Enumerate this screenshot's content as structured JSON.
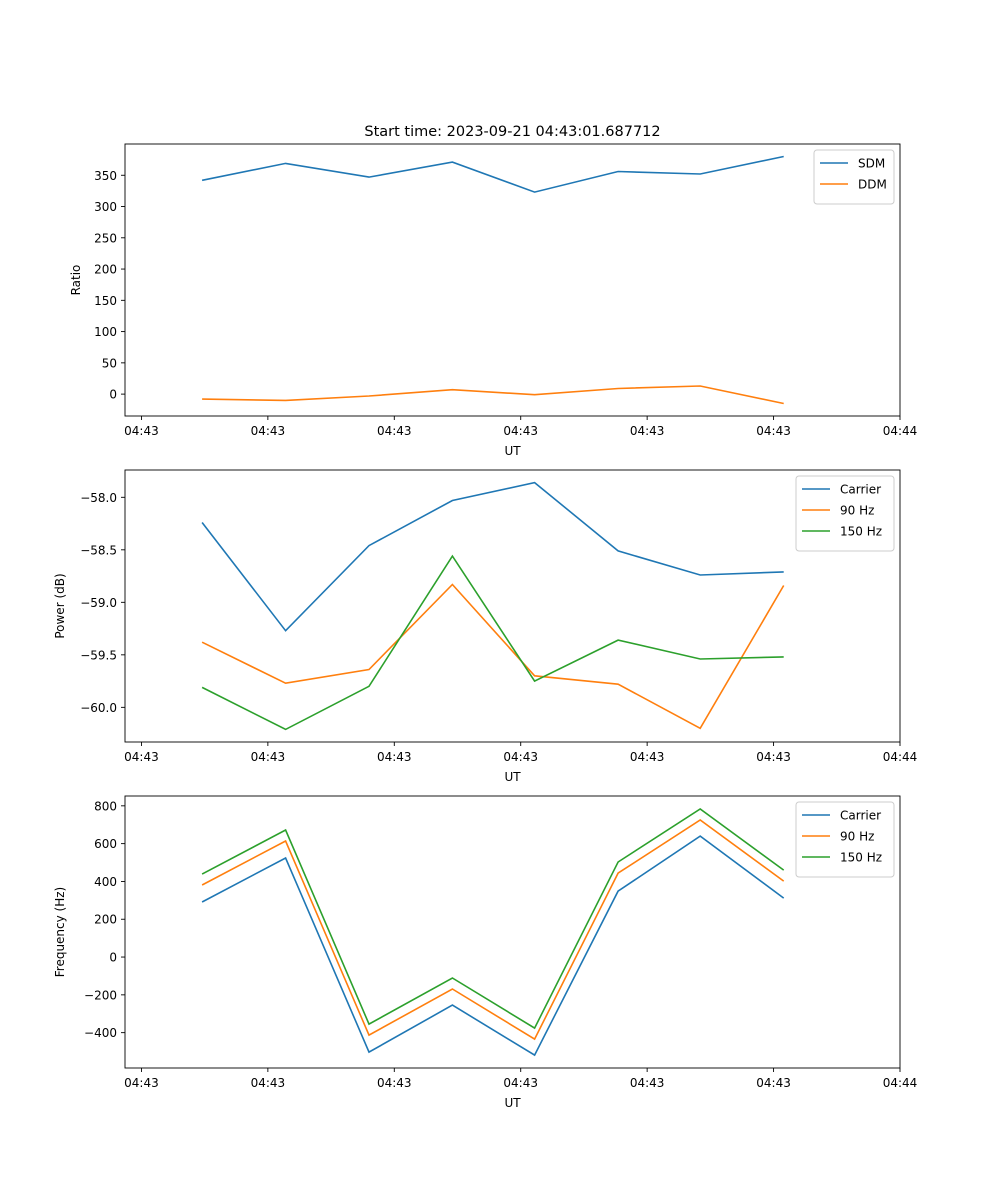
{
  "figure_title": "Start time: 2023-09-21 04:43:01.687712",
  "chart_data": [
    {
      "type": "line",
      "title": "Start time: 2023-09-21 04:43:01.687712",
      "xlabel": "UT",
      "ylabel": "Ratio",
      "x_tick_labels": [
        "04:43",
        "04:43",
        "04:43",
        "04:43",
        "04:43",
        "04:43",
        "04:44"
      ],
      "x_tick_positions": [
        0,
        1,
        2,
        3,
        4,
        5,
        6
      ],
      "xlim": [
        -0.13,
        6.0
      ],
      "x": [
        0.48,
        1.14,
        1.8,
        2.46,
        3.11,
        3.77,
        4.42,
        5.08
      ],
      "ylim": [
        -35,
        400
      ],
      "y_ticks": [
        0,
        50,
        100,
        150,
        200,
        250,
        300,
        350
      ],
      "y_tick_labels": [
        "0",
        "50",
        "100",
        "150",
        "200",
        "250",
        "300",
        "350"
      ],
      "legend_position": "upper-right",
      "grid": false,
      "series": [
        {
          "name": "SDM",
          "color": "#1f77b4",
          "values": [
            342,
            369,
            347,
            371,
            323,
            356,
            352,
            380
          ]
        },
        {
          "name": "DDM",
          "color": "#ff7f0e",
          "values": [
            -8,
            -10,
            -3,
            7,
            -1,
            9,
            13,
            -15
          ]
        }
      ]
    },
    {
      "type": "line",
      "title": "",
      "xlabel": "UT",
      "ylabel": "Power (dB)",
      "x_tick_labels": [
        "04:43",
        "04:43",
        "04:43",
        "04:43",
        "04:43",
        "04:43",
        "04:44"
      ],
      "x_tick_positions": [
        0,
        1,
        2,
        3,
        4,
        5,
        6
      ],
      "xlim": [
        -0.13,
        6.0
      ],
      "x": [
        0.48,
        1.14,
        1.8,
        2.46,
        3.11,
        3.77,
        4.42,
        5.08
      ],
      "ylim": [
        -60.33,
        -57.74
      ],
      "y_ticks": [
        -60.0,
        -59.5,
        -59.0,
        -58.5,
        -58.0
      ],
      "y_tick_labels": [
        "−60.0",
        "−59.5",
        "−59.0",
        "−58.5",
        "−58.0"
      ],
      "legend_position": "upper-right",
      "grid": false,
      "series": [
        {
          "name": "Carrier",
          "color": "#1f77b4",
          "values": [
            -58.24,
            -59.27,
            -58.46,
            -58.03,
            -57.86,
            -58.51,
            -58.74,
            -58.71
          ]
        },
        {
          "name": "90 Hz",
          "color": "#ff7f0e",
          "values": [
            -59.38,
            -59.77,
            -59.64,
            -58.83,
            -59.7,
            -59.78,
            -60.2,
            -58.84
          ]
        },
        {
          "name": "150 Hz",
          "color": "#2ca02c",
          "values": [
            -59.81,
            -60.21,
            -59.8,
            -58.56,
            -59.75,
            -59.36,
            -59.54,
            -59.52
          ]
        }
      ]
    },
    {
      "type": "line",
      "title": "",
      "xlabel": "UT",
      "ylabel": "Frequency (Hz)",
      "x_tick_labels": [
        "04:43",
        "04:43",
        "04:43",
        "04:43",
        "04:43",
        "04:43",
        "04:44"
      ],
      "x_tick_positions": [
        0,
        1,
        2,
        3,
        4,
        5,
        6
      ],
      "xlim": [
        -0.13,
        6.0
      ],
      "x": [
        0.48,
        1.14,
        1.8,
        2.46,
        3.11,
        3.77,
        4.42,
        5.08
      ],
      "ylim": [
        -587,
        852
      ],
      "y_ticks": [
        -400,
        -200,
        0,
        200,
        400,
        600,
        800
      ],
      "y_tick_labels": [
        "−400",
        "−200",
        "0",
        "200",
        "400",
        "600",
        "800"
      ],
      "legend_position": "upper-right",
      "grid": false,
      "series": [
        {
          "name": "Carrier",
          "color": "#1f77b4",
          "values": [
            291,
            524,
            -503,
            -254,
            -519,
            349,
            640,
            312
          ]
        },
        {
          "name": "90 Hz",
          "color": "#ff7f0e",
          "values": [
            381,
            614,
            -413,
            -169,
            -434,
            444,
            725,
            402
          ]
        },
        {
          "name": "150 Hz",
          "color": "#2ca02c",
          "values": [
            439,
            672,
            -355,
            -111,
            -376,
            503,
            783,
            460
          ]
        }
      ]
    }
  ]
}
